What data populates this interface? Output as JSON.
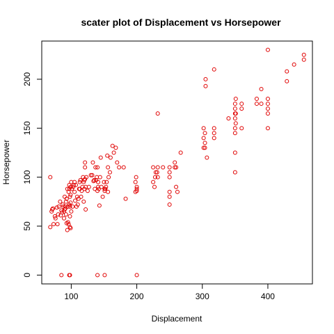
{
  "chart_data": {
    "type": "scatter",
    "title": "scater plot of Displacement vs Horsepower",
    "xlabel": "Displacement",
    "ylabel": "Horsepower",
    "xlim": [
      55,
      468
    ],
    "ylim": [
      -9,
      239
    ],
    "xticks": [
      100,
      200,
      300,
      400
    ],
    "yticks": [
      0,
      50,
      100,
      150,
      200
    ],
    "grid": false,
    "legend": "none",
    "point_color": "#e00000",
    "marker": "open-circle",
    "series": [
      {
        "x": [
          68,
          70,
          71,
          72,
          73,
          75,
          76,
          78,
          79,
          80,
          81,
          83,
          84,
          85,
          86,
          87,
          88,
          89,
          89,
          90,
          90,
          91,
          91,
          92,
          92,
          93,
          93,
          94,
          94,
          95,
          95,
          96,
          96,
          97,
          97,
          97,
          98,
          98,
          98,
          98,
          99,
          99,
          99,
          99,
          100,
          100,
          101,
          102,
          103,
          104,
          105,
          105,
          106,
          107,
          108,
          109,
          110,
          111,
          112,
          113,
          113,
          114,
          115,
          116,
          117,
          118,
          119,
          119,
          120,
          120,
          121,
          121,
          121,
          122,
          122,
          123,
          125,
          127,
          130,
          132,
          133,
          134,
          135,
          136,
          137,
          138,
          139,
          140,
          140,
          141,
          141,
          142,
          143,
          144,
          145,
          146,
          148,
          150,
          151,
          151,
          152,
          153,
          154,
          155,
          156,
          156,
          157,
          159,
          160,
          163,
          165,
          168,
          170,
          173,
          180,
          183,
          198,
          198,
          199,
          200,
          200,
          200,
          225,
          225,
          227,
          228,
          229,
          231,
          232,
          232,
          232,
          240,
          250,
          250,
          250,
          250,
          250,
          250,
          258,
          258,
          260,
          260,
          262,
          267,
          302,
          302,
          302,
          304,
          304,
          304,
          305,
          305,
          307,
          318,
          318,
          318,
          318,
          340,
          350,
          350,
          350,
          350,
          350,
          350,
          350,
          350,
          351,
          351,
          351,
          360,
          360,
          360,
          383,
          383,
          390,
          390,
          400,
          400,
          400,
          400,
          400,
          400,
          429,
          429,
          440,
          455,
          455,
          68,
          85,
          97,
          98,
          140,
          151,
          200
        ],
        "y": [
          49,
          65,
          67,
          68,
          52,
          60,
          58,
          69,
          52,
          62,
          70,
          75,
          61,
          66,
          64,
          72,
          70,
          58,
          65,
          67,
          80,
          68,
          70,
          75,
          62,
          53,
          78,
          46,
          88,
          70,
          54,
          85,
          52,
          72,
          88,
          92,
          60,
          80,
          70,
          49,
          82,
          74,
          90,
          48,
          65,
          95,
          88,
          70,
          90,
          92,
          95,
          85,
          76,
          92,
          70,
          80,
          72,
          78,
          88,
          88,
          95,
          97,
          80,
          86,
          90,
          100,
          95,
          75,
          88,
          97,
          110,
          98,
          115,
          67,
          90,
          100,
          86,
          90,
          102,
          102,
          115,
          96,
          97,
          88,
          110,
          97,
          100,
          86,
          110,
          90,
          95,
          88,
          71,
          100,
          120,
          90,
          80,
          95,
          88,
          86,
          88,
          90,
          95,
          122,
          85,
          110,
          100,
          105,
          120,
          132,
          125,
          130,
          115,
          110,
          110,
          78,
          85,
          95,
          100,
          90,
          88,
          86,
          110,
          95,
          90,
          100,
          105,
          105,
          100,
          110,
          165,
          110,
          105,
          85,
          80,
          72,
          100,
          110,
          110,
          115,
          90,
          110,
          85,
          125,
          130,
          140,
          150,
          135,
          130,
          145,
          193,
          200,
          120,
          140,
          145,
          150,
          210,
          160,
          150,
          165,
          170,
          175,
          160,
          145,
          125,
          105,
          180,
          155,
          165,
          170,
          175,
          150,
          180,
          175,
          190,
          175,
          230,
          175,
          165,
          170,
          180,
          150,
          198,
          208,
          215,
          220,
          225,
          100,
          0,
          0,
          0,
          0,
          0,
          0
        ]
      }
    ]
  }
}
